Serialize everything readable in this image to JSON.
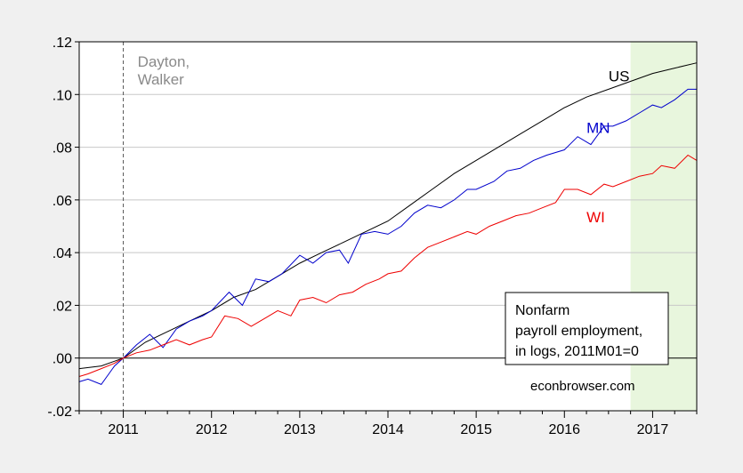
{
  "chart_data": {
    "type": "line",
    "x_start": "2010-07",
    "x_end": "2017-06",
    "xlim": [
      2010.5,
      2017.5
    ],
    "ylim": [
      -0.02,
      0.12
    ],
    "y_ticks": [
      ".12",
      ".10",
      ".08",
      ".06",
      ".04",
      ".02",
      ".00",
      "-.02"
    ],
    "x_ticks": [
      "2011",
      "2012",
      "2013",
      "2014",
      "2015",
      "2016",
      "2017"
    ],
    "grid": true,
    "zero_line": true,
    "event_line": {
      "x": 2011.0,
      "label_lines": [
        "Dayton,",
        "Walker"
      ]
    },
    "shaded_region": {
      "from": 2016.75,
      "to": 2017.5,
      "color": "#e8f6dd"
    },
    "legend_box": {
      "lines": [
        "Nonfarm",
        "payroll employment,",
        "in logs, 2011M01=0"
      ]
    },
    "source_note": "econbrowser.com",
    "series": [
      {
        "name": "US",
        "color": "#000000",
        "x": [
          2010.5,
          2010.75,
          2011.0,
          2011.25,
          2011.5,
          2011.75,
          2012.0,
          2012.25,
          2012.5,
          2012.75,
          2013.0,
          2013.25,
          2013.5,
          2013.75,
          2014.0,
          2014.25,
          2014.5,
          2014.75,
          2015.0,
          2015.25,
          2015.5,
          2015.75,
          2016.0,
          2016.25,
          2016.5,
          2016.75,
          2017.0,
          2017.25,
          2017.5
        ],
        "values": [
          -0.004,
          -0.003,
          0.0,
          0.006,
          0.01,
          0.014,
          0.018,
          0.023,
          0.026,
          0.031,
          0.036,
          0.04,
          0.044,
          0.048,
          0.052,
          0.058,
          0.064,
          0.07,
          0.075,
          0.08,
          0.085,
          0.09,
          0.095,
          0.099,
          0.102,
          0.105,
          0.108,
          0.11,
          0.112
        ]
      },
      {
        "name": "MN",
        "color": "#0000cc",
        "x": [
          2010.5,
          2010.6,
          2010.75,
          2010.9,
          2011.0,
          2011.15,
          2011.3,
          2011.45,
          2011.6,
          2011.75,
          2011.9,
          2012.0,
          2012.2,
          2012.35,
          2012.5,
          2012.65,
          2012.8,
          2013.0,
          2013.15,
          2013.3,
          2013.45,
          2013.55,
          2013.7,
          2013.85,
          2014.0,
          2014.15,
          2014.3,
          2014.45,
          2014.6,
          2014.75,
          2014.9,
          2015.0,
          2015.2,
          2015.35,
          2015.5,
          2015.65,
          2015.8,
          2016.0,
          2016.15,
          2016.3,
          2016.45,
          2016.55,
          2016.7,
          2016.85,
          2017.0,
          2017.1,
          2017.25,
          2017.4,
          2017.5
        ],
        "values": [
          -0.009,
          -0.008,
          -0.01,
          -0.003,
          0.0,
          0.005,
          0.009,
          0.004,
          0.011,
          0.014,
          0.016,
          0.018,
          0.025,
          0.02,
          0.03,
          0.029,
          0.032,
          0.039,
          0.036,
          0.04,
          0.041,
          0.036,
          0.047,
          0.048,
          0.047,
          0.05,
          0.055,
          0.058,
          0.057,
          0.06,
          0.064,
          0.064,
          0.067,
          0.071,
          0.072,
          0.075,
          0.077,
          0.079,
          0.084,
          0.081,
          0.088,
          0.088,
          0.09,
          0.093,
          0.096,
          0.095,
          0.098,
          0.102,
          0.102
        ]
      },
      {
        "name": "WI",
        "color": "#ee0000",
        "x": [
          2010.5,
          2010.6,
          2010.75,
          2010.9,
          2011.0,
          2011.15,
          2011.3,
          2011.45,
          2011.6,
          2011.75,
          2011.9,
          2012.0,
          2012.15,
          2012.3,
          2012.45,
          2012.6,
          2012.75,
          2012.9,
          2013.0,
          2013.15,
          2013.3,
          2013.45,
          2013.6,
          2013.75,
          2013.9,
          2014.0,
          2014.15,
          2014.3,
          2014.45,
          2014.6,
          2014.75,
          2014.9,
          2015.0,
          2015.15,
          2015.3,
          2015.45,
          2015.6,
          2015.75,
          2015.9,
          2016.0,
          2016.15,
          2016.3,
          2016.45,
          2016.55,
          2016.7,
          2016.85,
          2017.0,
          2017.1,
          2017.25,
          2017.4,
          2017.5
        ],
        "values": [
          -0.007,
          -0.006,
          -0.004,
          -0.002,
          0.0,
          0.002,
          0.003,
          0.005,
          0.007,
          0.005,
          0.007,
          0.008,
          0.016,
          0.015,
          0.012,
          0.015,
          0.018,
          0.016,
          0.022,
          0.023,
          0.021,
          0.024,
          0.025,
          0.028,
          0.03,
          0.032,
          0.033,
          0.038,
          0.042,
          0.044,
          0.046,
          0.048,
          0.047,
          0.05,
          0.052,
          0.054,
          0.055,
          0.057,
          0.059,
          0.064,
          0.064,
          0.062,
          0.066,
          0.065,
          0.067,
          0.069,
          0.07,
          0.073,
          0.072,
          0.077,
          0.075
        ]
      }
    ]
  }
}
